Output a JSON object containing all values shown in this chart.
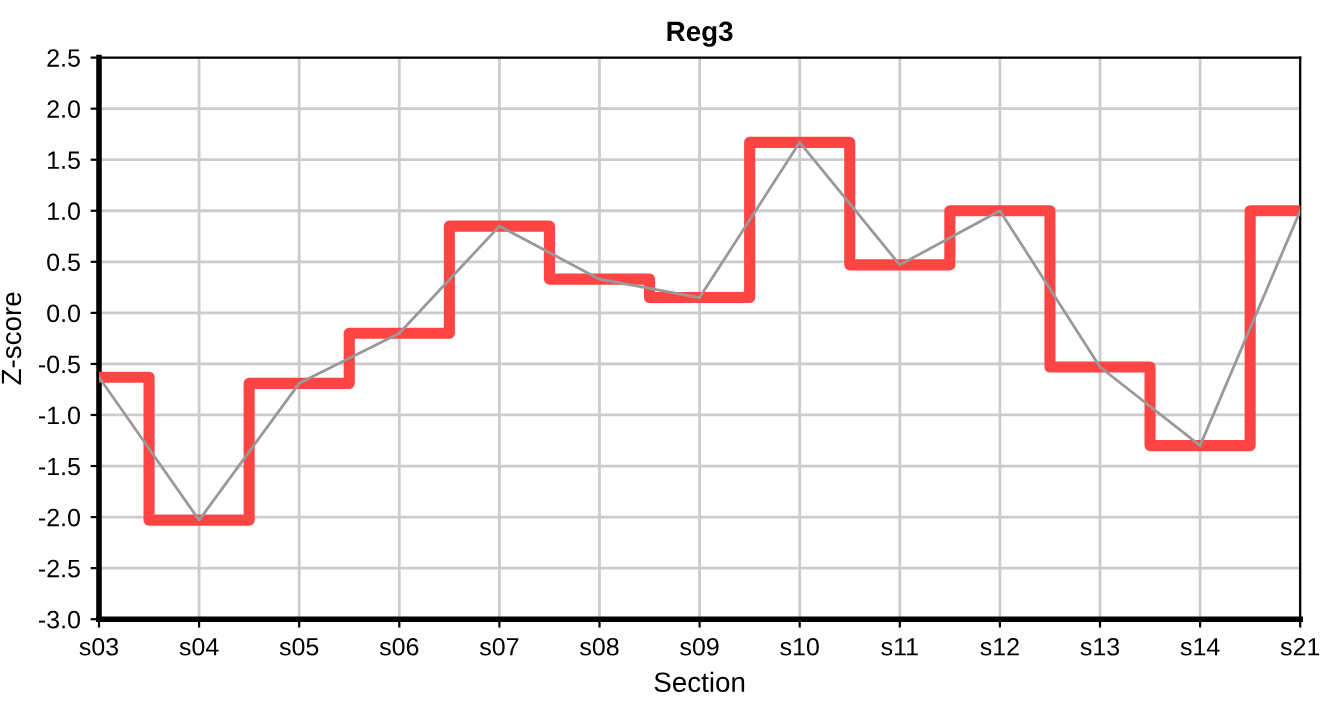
{
  "chart_data": {
    "type": "step",
    "title": "Reg3",
    "xlabel": "Section",
    "ylabel": "Z-score",
    "categories": [
      "s03",
      "s04",
      "s05",
      "s06",
      "s07",
      "s08",
      "s09",
      "s10",
      "s11",
      "s12",
      "s13",
      "s14",
      "s21"
    ],
    "series": [
      {
        "color": "#ff4444",
        "values": [
          -0.63,
          -2.03,
          -0.69,
          -0.2,
          0.85,
          0.33,
          0.15,
          1.67,
          0.47,
          1.0,
          -0.53,
          -1.3,
          1.0
        ]
      },
      {
        "type": "line",
        "color": "#999999",
        "values": [
          -0.63,
          -2.03,
          -0.69,
          -0.2,
          0.85,
          0.33,
          0.15,
          1.67,
          0.47,
          1.0,
          -0.53,
          -1.3,
          1.0
        ]
      }
    ],
    "ylim": [
      -3.0,
      2.5
    ],
    "yticks": [
      {
        "value": -3,
        "label": "-3.0"
      },
      {
        "value": -2.5,
        "label": "-2.5"
      },
      {
        "value": -2,
        "label": "-2.0"
      },
      {
        "value": -1.5,
        "label": "-1.5"
      },
      {
        "value": -1,
        "label": "-1.0"
      },
      {
        "value": -0.5,
        "label": "-0.5"
      },
      {
        "value": 0,
        "label": "0.0"
      },
      {
        "value": 0.5,
        "label": "0.5"
      },
      {
        "value": 1,
        "label": "1.0"
      },
      {
        "value": 1.5,
        "label": "1.5"
      },
      {
        "value": 2,
        "label": "2.0"
      },
      {
        "value": 2.5,
        "label": "2.5"
      }
    ],
    "grid": true
  }
}
